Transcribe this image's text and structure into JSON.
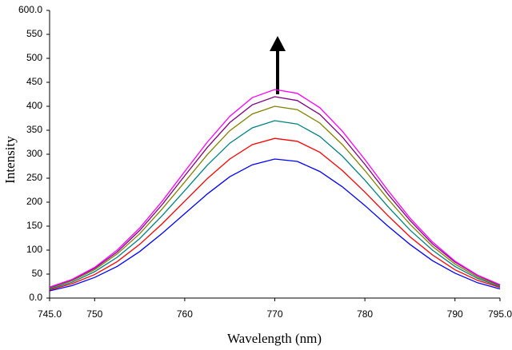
{
  "chart_data": {
    "type": "line",
    "x_label": "Wavelength (nm)",
    "y_label": "Intensity",
    "x": [
      745,
      747.5,
      750,
      752.5,
      755,
      757.5,
      760,
      762.5,
      765,
      767.5,
      770,
      772.5,
      775,
      777.5,
      780,
      782.5,
      785,
      787.5,
      790,
      792.5,
      795
    ],
    "series": [
      {
        "color": "#0000ff",
        "values": [
          15,
          26,
          43,
          66,
          97,
          135,
          176,
          217,
          253,
          278,
          290,
          285,
          264,
          232,
          193,
          151,
          112,
          78,
          52,
          32,
          19
        ]
      },
      {
        "color": "#ff0000",
        "values": [
          17,
          30,
          49,
          76,
          112,
          155,
          202,
          249,
          290,
          320,
          333,
          327,
          304,
          266,
          221,
          173,
          128,
          90,
          59,
          37,
          22
        ]
      },
      {
        "color": "#008080",
        "values": [
          19,
          33,
          55,
          85,
          124,
          172,
          224,
          277,
          323,
          355,
          370,
          363,
          337,
          296,
          246,
          192,
          142,
          100,
          66,
          41,
          24
        ]
      },
      {
        "color": "#808000",
        "values": [
          21,
          36,
          59,
          92,
          134,
          186,
          242,
          299,
          349,
          384,
          400,
          393,
          365,
          320,
          266,
          208,
          154,
          108,
          71,
          44,
          26
        ]
      },
      {
        "color": "#800080",
        "values": [
          22,
          38,
          62,
          96,
          141,
          195,
          255,
          314,
          366,
          403,
          420,
          412,
          383,
          336,
          279,
          218,
          162,
          113,
          75,
          47,
          27
        ]
      },
      {
        "color": "#ff00ff",
        "values": [
          23,
          39,
          64,
          100,
          146,
          202,
          264,
          325,
          379,
          418,
          435,
          427,
          397,
          348,
          289,
          226,
          167,
          117,
          77,
          48,
          28
        ]
      }
    ],
    "xlim": [
      745,
      795
    ],
    "xticks": [
      {
        "value": 745,
        "label": "745.0"
      },
      750,
      760,
      770,
      780,
      790,
      {
        "value": 795,
        "label": "795.0"
      }
    ],
    "ylim": [
      0,
      600
    ],
    "yticks": [
      {
        "value": 0,
        "label": "0.0"
      },
      50,
      100,
      150,
      200,
      250,
      300,
      350,
      400,
      450,
      500,
      550,
      {
        "value": 600,
        "label": "600.0"
      }
    ]
  }
}
